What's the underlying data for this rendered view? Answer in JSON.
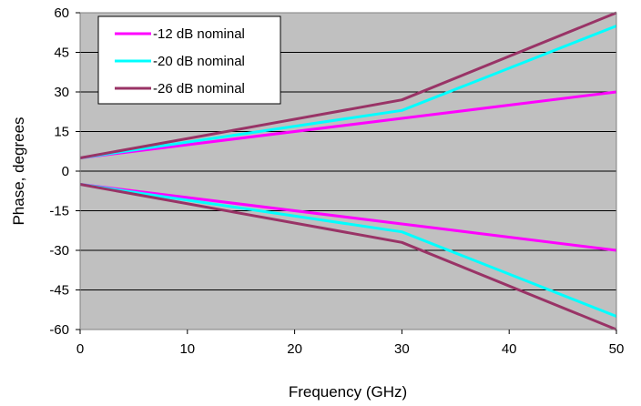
{
  "chart_data": {
    "type": "line",
    "xlabel": "Frequency (GHz)",
    "ylabel": "Phase, degrees",
    "xlim": [
      0,
      50
    ],
    "ylim": [
      -60,
      60
    ],
    "x_ticks": [
      0,
      10,
      20,
      30,
      40,
      50
    ],
    "y_ticks": [
      60,
      45,
      30,
      15,
      0,
      -15,
      -30,
      -45,
      -60
    ],
    "grid": "horizontal",
    "legend_position": "top-left",
    "background_color": "#c0c0c0",
    "gridline_color": "#000000",
    "series": [
      {
        "name": "-12 dB nominal",
        "color": "#ff00ff",
        "upper": [
          [
            0,
            5
          ],
          [
            30,
            20
          ],
          [
            50,
            30
          ]
        ],
        "lower": [
          [
            0,
            -5
          ],
          [
            30,
            -20
          ],
          [
            50,
            -30
          ]
        ]
      },
      {
        "name": "-20 dB nominal",
        "color": "#00ffff",
        "upper": [
          [
            0,
            5
          ],
          [
            30,
            23
          ],
          [
            50,
            55
          ]
        ],
        "lower": [
          [
            0,
            -5
          ],
          [
            30,
            -23
          ],
          [
            50,
            -55
          ]
        ]
      },
      {
        "name": "-26 dB nominal",
        "color": "#993366",
        "upper": [
          [
            0,
            5
          ],
          [
            30,
            27
          ],
          [
            50,
            60
          ]
        ],
        "lower": [
          [
            0,
            -5
          ],
          [
            30,
            -27
          ],
          [
            50,
            -60
          ]
        ]
      }
    ]
  }
}
